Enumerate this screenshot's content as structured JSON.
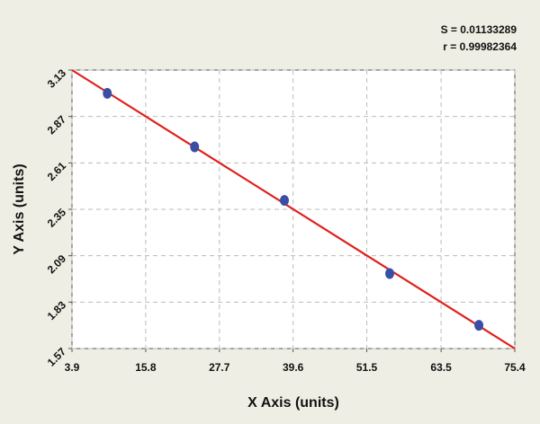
{
  "chart_data": {
    "type": "scatter",
    "annotations": [
      "S = 0.01133289",
      "r = 0.99982364"
    ],
    "x_label": "X Axis (units)",
    "y_label": "Y Axis (units)",
    "points": {
      "color": "#3a4ea6",
      "x": [
        9.6,
        23.7,
        38.2,
        55.2,
        69.6
      ],
      "y": [
        3.0,
        2.7,
        2.4,
        1.99,
        1.7
      ]
    },
    "fit_line": {
      "color": "#e0201c",
      "x": [
        3.9,
        75.4
      ],
      "y": [
        3.13,
        1.57
      ]
    },
    "xlim": [
      3.9,
      75.4
    ],
    "xticks": [
      3.9,
      15.8,
      27.7,
      39.6,
      51.5,
      63.5,
      75.4
    ],
    "ylim": [
      1.57,
      3.13
    ],
    "yticks": [
      1.57,
      1.83,
      2.09,
      2.35,
      2.61,
      2.87,
      3.13
    ],
    "grid": true
  }
}
